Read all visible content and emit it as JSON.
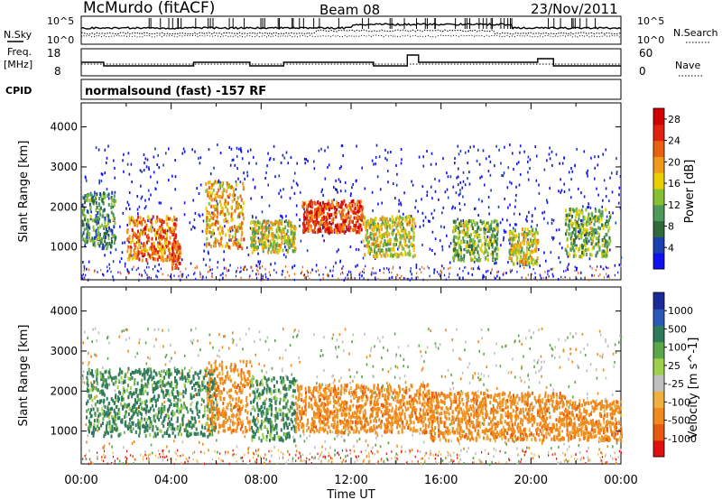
{
  "header": {
    "station": "McMurdo (fitACF)",
    "beam": "Beam 08",
    "date": "23/Nov/2011"
  },
  "noise_panel": {
    "left_label": "N.Sky",
    "right_label": "N.Search",
    "left_ticks": [
      "10^5",
      "10^0"
    ],
    "right_ticks": [
      "10^5",
      "10^0"
    ]
  },
  "freq_panel": {
    "left_label_1": "Freq.",
    "left_label_2": "[MHz]",
    "right_label": "Nave",
    "left_ticks": [
      "18",
      "8"
    ],
    "right_ticks": [
      "60",
      "0"
    ]
  },
  "cpid": {
    "label": "CPID",
    "value": "normalsound (fast) -157 RF"
  },
  "colors": {
    "power": [
      "#1010f0",
      "#1a3fb0",
      "#2f6a3a",
      "#4e9a5a",
      "#88c034",
      "#e8d000",
      "#ef9a1a",
      "#e86010",
      "#e02010",
      "#d00000"
    ],
    "velocity": [
      "#1a2a9a",
      "#2a58b8",
      "#2e7a5a",
      "#5aa84a",
      "#9ed04a",
      "#c0c0c0",
      "#f0b040",
      "#f08a1a",
      "#e85a10",
      "#e01010"
    ]
  },
  "chart_data": [
    {
      "type": "heatmap",
      "name": "power",
      "title": "",
      "ylabel": "Slant Range [km]",
      "xlabel": "",
      "ylim": [
        180,
        4600
      ],
      "xlim_hours": [
        0,
        24
      ],
      "yticks": [
        "1000",
        "2000",
        "3000",
        "4000"
      ],
      "xticks": [
        "00:00",
        "04:00",
        "08:00",
        "12:00",
        "16:00",
        "20:00",
        "00:00"
      ],
      "colorbar": {
        "label": "Power [dB]",
        "ticks": [
          "4",
          "8",
          "12",
          "16",
          "20",
          "24",
          "28"
        ],
        "range": [
          0,
          30
        ]
      },
      "features": [
        {
          "t_start": 0.0,
          "t_end": 1.5,
          "range_km": [
            1000,
            2400
          ],
          "value": 10
        },
        {
          "t_start": 2.0,
          "t_end": 4.2,
          "range_km": [
            700,
            1800
          ],
          "value": 22
        },
        {
          "t_start": 4.0,
          "t_end": 4.4,
          "range_km": [
            500,
            1200
          ],
          "value": 28
        },
        {
          "t_start": 5.5,
          "t_end": 7.2,
          "range_km": [
            1000,
            2700
          ],
          "value": 20
        },
        {
          "t_start": 7.5,
          "t_end": 9.5,
          "range_km": [
            900,
            1700
          ],
          "value": 16
        },
        {
          "t_start": 9.8,
          "t_end": 12.5,
          "range_km": [
            1400,
            2200
          ],
          "value": 28
        },
        {
          "t_start": 12.5,
          "t_end": 14.8,
          "range_km": [
            800,
            1800
          ],
          "value": 18
        },
        {
          "t_start": 16.5,
          "t_end": 18.5,
          "range_km": [
            700,
            1700
          ],
          "value": 14
        },
        {
          "t_start": 19.0,
          "t_end": 20.3,
          "range_km": [
            600,
            1500
          ],
          "value": 18
        },
        {
          "t_start": 21.5,
          "t_end": 23.5,
          "range_km": [
            800,
            2000
          ],
          "value": 14
        }
      ]
    },
    {
      "type": "heatmap",
      "name": "velocity",
      "title": "",
      "ylabel": "Slant Range [km]",
      "xlabel": "Time UT",
      "ylim": [
        180,
        4600
      ],
      "xlim_hours": [
        0,
        24
      ],
      "yticks": [
        "1000",
        "2000",
        "3000",
        "4000"
      ],
      "xticks": [
        "00:00",
        "04:00",
        "08:00",
        "12:00",
        "16:00",
        "20:00",
        "00:00"
      ],
      "colorbar": {
        "label": "Velocity [m s^-1]",
        "ticks": [
          "1000",
          "500",
          "100",
          "25",
          "-25",
          "-100",
          "-500",
          "-1000"
        ]
      },
      "features": [
        {
          "t_start": 0.2,
          "t_end": 6.0,
          "range_km": [
            900,
            2600
          ],
          "value": 200
        },
        {
          "t_start": 5.5,
          "t_end": 7.5,
          "range_km": [
            1000,
            2800
          ],
          "value": -300
        },
        {
          "t_start": 7.5,
          "t_end": 9.5,
          "range_km": [
            800,
            2400
          ],
          "value": 150
        },
        {
          "t_start": 9.5,
          "t_end": 15.5,
          "range_km": [
            1000,
            2200
          ],
          "value": -150
        },
        {
          "t_start": 15.5,
          "t_end": 21.5,
          "range_km": [
            800,
            2000
          ],
          "value": -120
        },
        {
          "t_start": 21.5,
          "t_end": 24.0,
          "range_km": [
            800,
            1800
          ],
          "value": -200
        }
      ]
    }
  ]
}
